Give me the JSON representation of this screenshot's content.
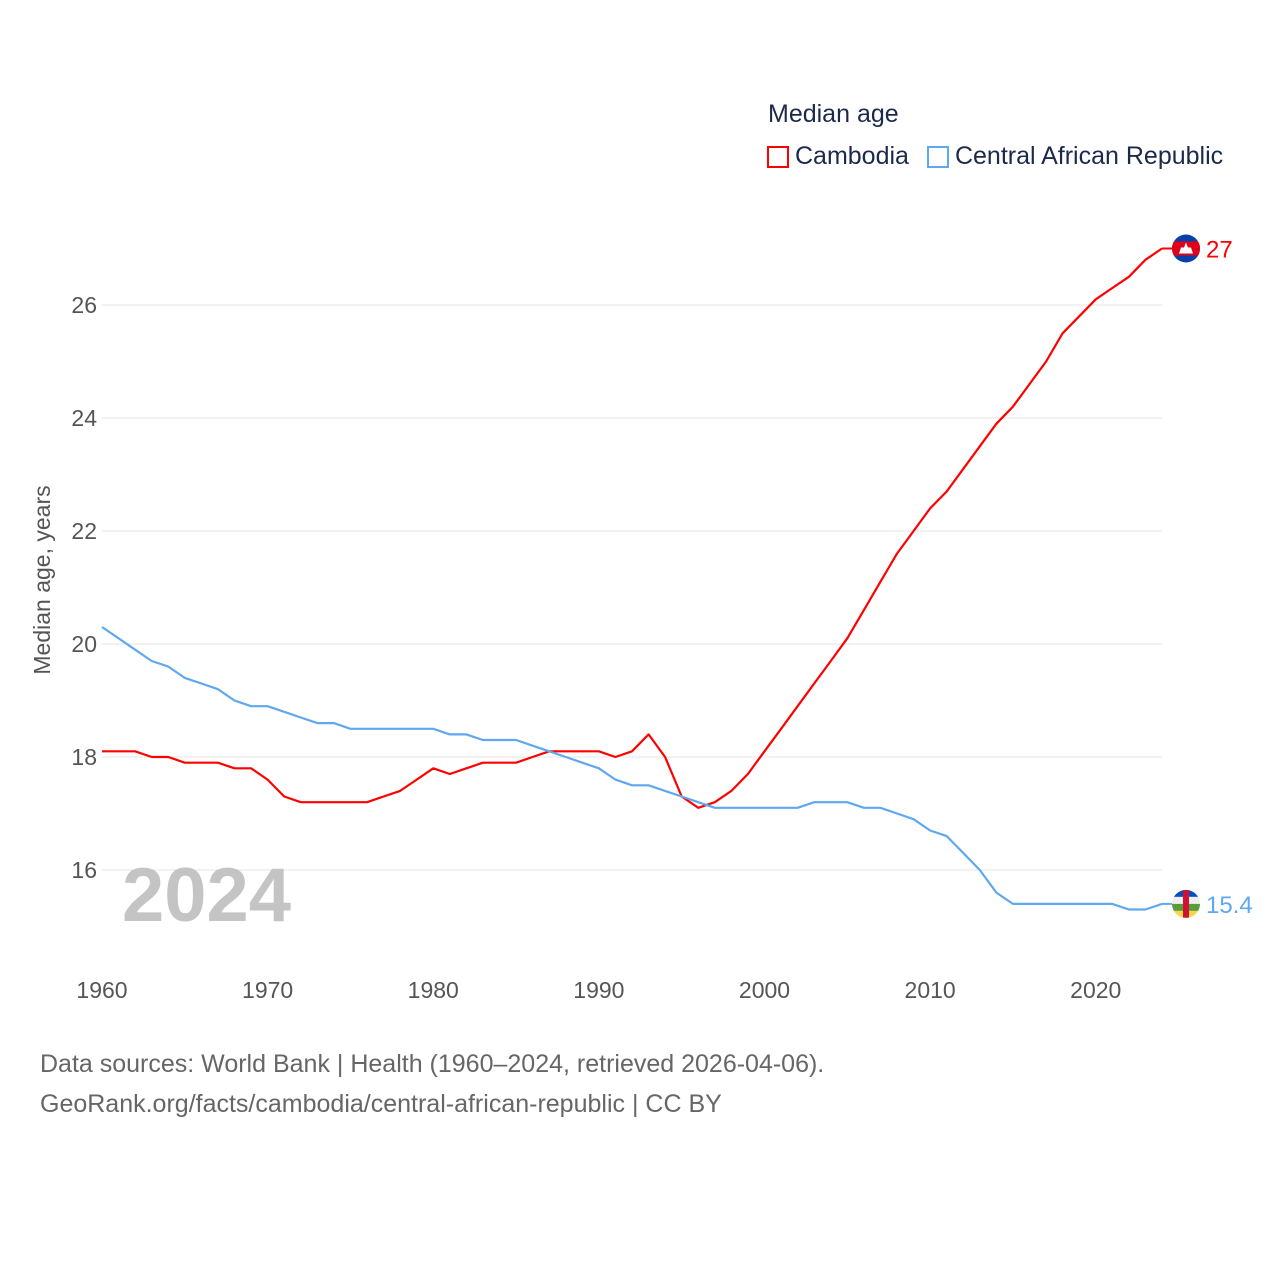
{
  "chart_data": {
    "type": "line",
    "title": "Median age",
    "xlabel": "",
    "ylabel": "Median age, years",
    "xlim": [
      1960,
      2024
    ],
    "ylim": [
      14.8,
      27.6
    ],
    "x_ticks": [
      1960,
      1970,
      1980,
      1990,
      2000,
      2010,
      2020
    ],
    "y_ticks": [
      16,
      18,
      20,
      22,
      24,
      26
    ],
    "grid": true,
    "legend_placement": "top-right",
    "x": [
      1960,
      1961,
      1962,
      1963,
      1964,
      1965,
      1966,
      1967,
      1968,
      1969,
      1970,
      1971,
      1972,
      1973,
      1974,
      1975,
      1976,
      1977,
      1978,
      1979,
      1980,
      1981,
      1982,
      1983,
      1984,
      1985,
      1986,
      1987,
      1988,
      1989,
      1990,
      1991,
      1992,
      1993,
      1994,
      1995,
      1996,
      1997,
      1998,
      1999,
      2000,
      2001,
      2002,
      2003,
      2004,
      2005,
      2006,
      2007,
      2008,
      2009,
      2010,
      2011,
      2012,
      2013,
      2014,
      2015,
      2016,
      2017,
      2018,
      2019,
      2020,
      2021,
      2022,
      2023,
      2024
    ],
    "series": [
      {
        "name": "Cambodia",
        "color": "#ff0000",
        "end_label": "27",
        "values": [
          18.1,
          18.1,
          18.1,
          18.0,
          18.0,
          17.9,
          17.9,
          17.9,
          17.8,
          17.8,
          17.6,
          17.3,
          17.2,
          17.2,
          17.2,
          17.2,
          17.2,
          17.3,
          17.4,
          17.6,
          17.8,
          17.7,
          17.8,
          17.9,
          17.9,
          17.9,
          18.0,
          18.1,
          18.1,
          18.1,
          18.1,
          18.0,
          18.1,
          18.4,
          18.0,
          17.3,
          17.1,
          17.2,
          17.4,
          17.7,
          18.1,
          18.5,
          18.9,
          19.3,
          19.7,
          20.1,
          20.6,
          21.1,
          21.6,
          22.0,
          22.4,
          22.7,
          23.1,
          23.5,
          23.9,
          24.2,
          24.6,
          25.0,
          25.5,
          25.8,
          26.1,
          26.3,
          26.5,
          26.8,
          27.0
        ]
      },
      {
        "name": "Central African Republic",
        "color": "#5fa8f0",
        "end_label": "15.4",
        "values": [
          20.3,
          20.1,
          19.9,
          19.7,
          19.6,
          19.4,
          19.3,
          19.2,
          19.0,
          18.9,
          18.9,
          18.8,
          18.7,
          18.6,
          18.6,
          18.5,
          18.5,
          18.5,
          18.5,
          18.5,
          18.5,
          18.4,
          18.4,
          18.3,
          18.3,
          18.3,
          18.2,
          18.1,
          18.0,
          17.9,
          17.8,
          17.6,
          17.5,
          17.5,
          17.4,
          17.3,
          17.2,
          17.1,
          17.1,
          17.1,
          17.1,
          17.1,
          17.1,
          17.2,
          17.2,
          17.2,
          17.1,
          17.1,
          17.0,
          16.9,
          16.7,
          16.6,
          16.3,
          16.0,
          15.6,
          15.4,
          15.4,
          15.4,
          15.4,
          15.4,
          15.4,
          15.4,
          15.3,
          15.3,
          15.4
        ]
      }
    ],
    "annotation_year": "2024"
  },
  "footer": {
    "line1": "Data sources: World Bank | Health (1960–2024, retrieved 2026-04-06).",
    "line2": "GeoRank.org/facts/cambodia/central-african-republic | CC BY"
  }
}
